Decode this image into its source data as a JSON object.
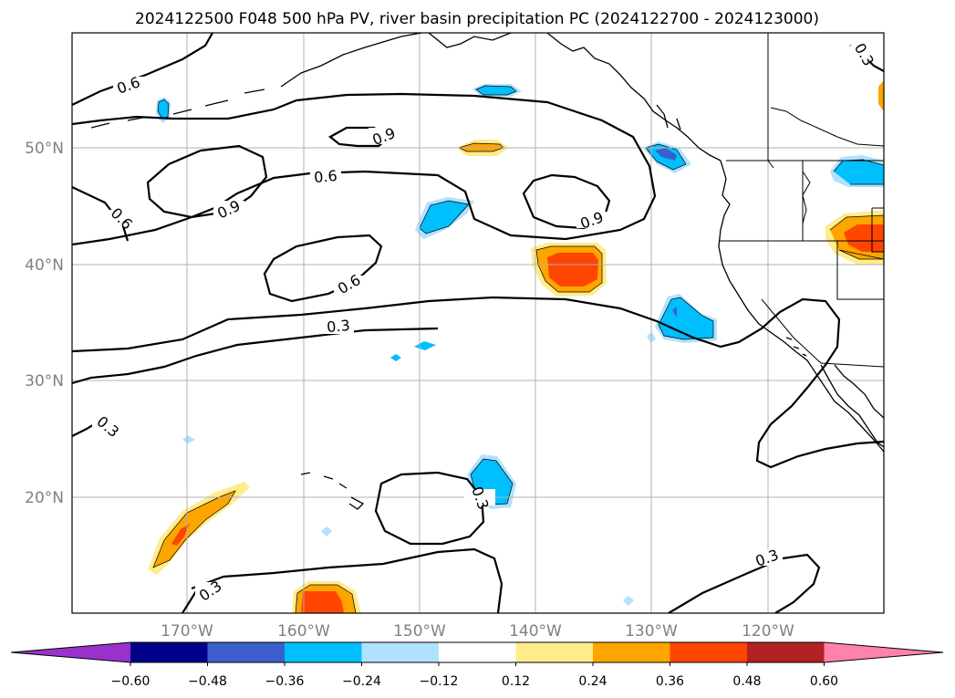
{
  "title": "2024122500 F048 500 hPa PV, river basin precipitation PC (2024122700 - 2024123000)",
  "map": {
    "lon_ticks": [
      "170°W",
      "160°W",
      "150°W",
      "140°W",
      "130°W",
      "120°W"
    ],
    "lat_ticks": [
      "50°N",
      "40°N",
      "30°N",
      "20°N"
    ],
    "contour_labels": [
      {
        "value": "0.6",
        "name": "pv-label-0.6-northwest"
      },
      {
        "value": "0.9",
        "name": "pv-label-0.9-north"
      },
      {
        "value": "0.6",
        "name": "pv-label-0.6-west"
      },
      {
        "value": "0.9",
        "name": "pv-label-0.9-west"
      },
      {
        "value": "0.6",
        "name": "pv-label-0.6-center-north"
      },
      {
        "value": "0.9",
        "name": "pv-label-0.9-east"
      },
      {
        "value": "0.6",
        "name": "pv-label-0.6-center"
      },
      {
        "value": "0.3",
        "name": "pv-label-0.3-center"
      },
      {
        "value": "0.3",
        "name": "pv-label-0.3-southwest"
      },
      {
        "value": "0.3",
        "name": "pv-label-0.3-hawaii"
      },
      {
        "value": "0.3",
        "name": "pv-label-0.3-south"
      },
      {
        "value": "0.3",
        "name": "pv-label-0.3-southeast"
      },
      {
        "value": "0.3",
        "name": "pv-label-0.3-northeast"
      }
    ]
  },
  "colorbar": {
    "colors": [
      "#9932cc",
      "#00008b",
      "#3a5fcd",
      "#00bfff",
      "#b0e2ff",
      "#ffffff",
      "#ffec8b",
      "#ffa500",
      "#ff4500",
      "#b22222",
      "#ff82ab"
    ],
    "tick_labels": [
      "−0.60",
      "−0.48",
      "−0.36",
      "−0.24",
      "−0.12",
      "0.12",
      "0.24",
      "0.36",
      "0.48",
      "0.60"
    ]
  }
}
